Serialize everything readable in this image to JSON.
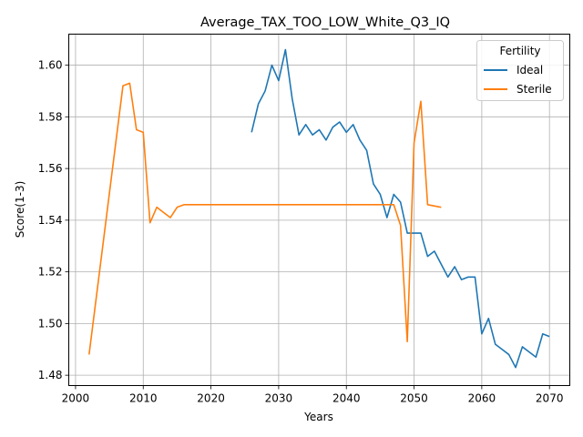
{
  "chart_data": {
    "type": "line",
    "title": "Average_TAX_TOO_LOW_White_Q3_IQ",
    "xlabel": "Years",
    "ylabel": "Score(1-3)",
    "xlim": [
      1999,
      2073
    ],
    "ylim": [
      1.476,
      1.612
    ],
    "xticks": [
      2000,
      2010,
      2020,
      2030,
      2040,
      2050,
      2060,
      2070
    ],
    "yticks": [
      1.48,
      1.5,
      1.52,
      1.54,
      1.56,
      1.58,
      1.6
    ],
    "ytick_labels": [
      "1.48",
      "1.50",
      "1.52",
      "1.54",
      "1.56",
      "1.58",
      "1.60"
    ],
    "grid": true,
    "legend": {
      "title": "Fertility",
      "placement": "top-right"
    },
    "series": [
      {
        "name": "Ideal",
        "color": "#1f77b4",
        "points": [
          [
            2026,
            1.574
          ],
          [
            2027,
            1.585
          ],
          [
            2028,
            1.59
          ],
          [
            2029,
            1.6
          ],
          [
            2030,
            1.594
          ],
          [
            2031,
            1.606
          ],
          [
            2032,
            1.587
          ],
          [
            2033,
            1.573
          ],
          [
            2034,
            1.577
          ],
          [
            2035,
            1.573
          ],
          [
            2036,
            1.575
          ],
          [
            2037,
            1.571
          ],
          [
            2038,
            1.576
          ],
          [
            2039,
            1.578
          ],
          [
            2040,
            1.574
          ],
          [
            2041,
            1.577
          ],
          [
            2042,
            1.571
          ],
          [
            2043,
            1.567
          ],
          [
            2044,
            1.554
          ],
          [
            2045,
            1.55
          ],
          [
            2046,
            1.541
          ],
          [
            2047,
            1.55
          ],
          [
            2048,
            1.547
          ],
          [
            2049,
            1.535
          ],
          [
            2050,
            1.535
          ],
          [
            2051,
            1.535
          ],
          [
            2052,
            1.526
          ],
          [
            2053,
            1.528
          ],
          [
            2054,
            1.523
          ],
          [
            2055,
            1.518
          ],
          [
            2056,
            1.522
          ],
          [
            2057,
            1.517
          ],
          [
            2058,
            1.518
          ],
          [
            2059,
            1.518
          ],
          [
            2060,
            1.496
          ],
          [
            2061,
            1.502
          ],
          [
            2062,
            1.492
          ],
          [
            2063,
            1.49
          ],
          [
            2064,
            1.488
          ],
          [
            2065,
            1.483
          ],
          [
            2066,
            1.491
          ],
          [
            2067,
            1.489
          ],
          [
            2068,
            1.487
          ],
          [
            2069,
            1.496
          ],
          [
            2070,
            1.495
          ]
        ]
      },
      {
        "name": "Sterile",
        "color": "#ff7f0e",
        "points": [
          [
            2002,
            1.488
          ],
          [
            2007,
            1.592
          ],
          [
            2008,
            1.593
          ],
          [
            2009,
            1.575
          ],
          [
            2010,
            1.574
          ],
          [
            2011,
            1.539
          ],
          [
            2012,
            1.545
          ],
          [
            2013,
            1.543
          ],
          [
            2014,
            1.541
          ],
          [
            2015,
            1.545
          ],
          [
            2016,
            1.546
          ],
          [
            2017,
            1.546
          ],
          [
            2018,
            1.546
          ],
          [
            2020,
            1.546
          ],
          [
            2030,
            1.546
          ],
          [
            2040,
            1.546
          ],
          [
            2047,
            1.546
          ],
          [
            2048,
            1.538
          ],
          [
            2049,
            1.493
          ],
          [
            2050,
            1.57
          ],
          [
            2051,
            1.586
          ],
          [
            2052,
            1.546
          ],
          [
            2054,
            1.545
          ]
        ]
      }
    ]
  }
}
